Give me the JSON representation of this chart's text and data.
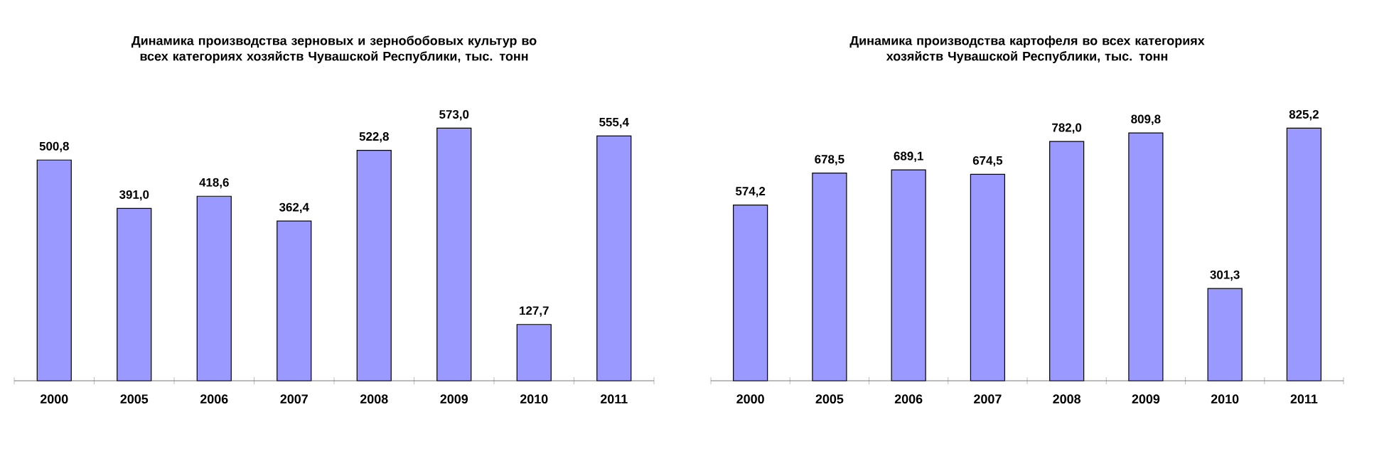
{
  "chart_data": [
    {
      "type": "bar",
      "title": "Динамика производства зерновых и зернобобовых культур во всех категориях хозяйств Чувашской Республики, тыс. тонн",
      "categories": [
        "2000",
        "2005",
        "2006",
        "2007",
        "2008",
        "2009",
        "2010",
        "2011"
      ],
      "values": [
        500.8,
        391.0,
        418.6,
        362.4,
        522.8,
        573.0,
        127.7,
        555.4
      ],
      "value_labels": [
        "500,8",
        "391,0",
        "418,6",
        "362,4",
        "522,8",
        "573,0",
        "127,7",
        "555,4"
      ],
      "color": "#9999ff"
    },
    {
      "type": "bar",
      "title": "Динамика производства картофеля во всех категориях хозяйств Чувашской Республики, тыс. тонн",
      "categories": [
        "2000",
        "2005",
        "2006",
        "2007",
        "2008",
        "2009",
        "2010",
        "2011"
      ],
      "values": [
        574.2,
        678.5,
        689.1,
        674.5,
        782.0,
        809.8,
        301.3,
        825.2
      ],
      "value_labels": [
        "574,2",
        "678,5",
        "689,1",
        "674,5",
        "782,0",
        "809,8",
        "301,3",
        "825,2"
      ],
      "color": "#9999ff"
    }
  ]
}
